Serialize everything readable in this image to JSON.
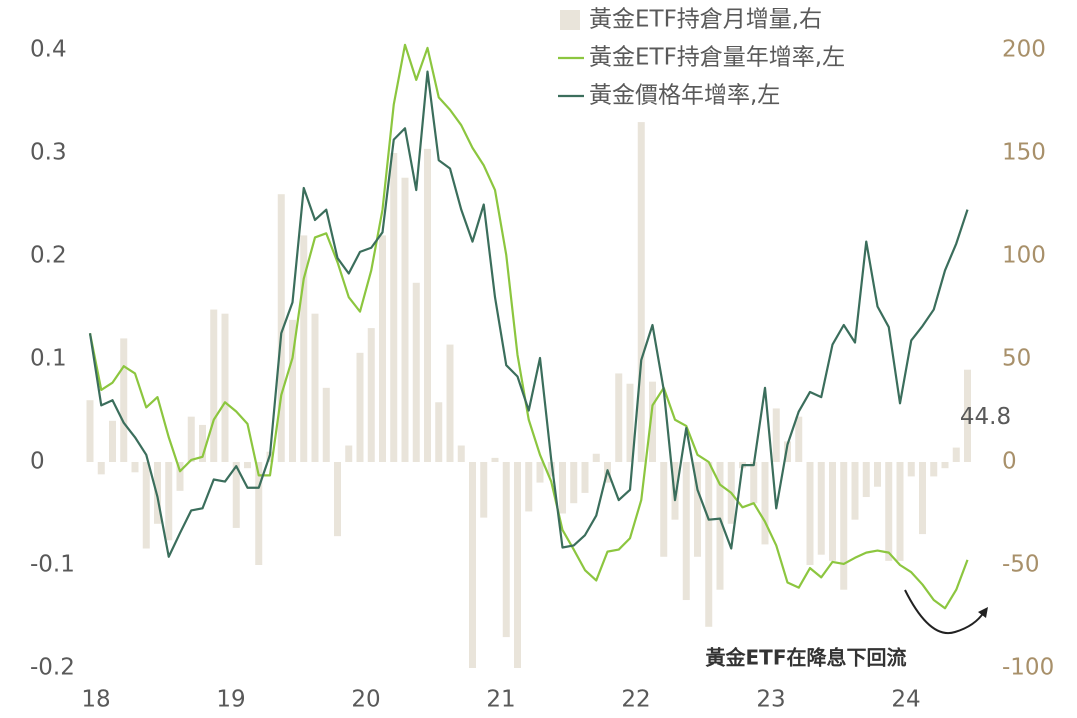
{
  "chart_data": {
    "type": "combo",
    "categories": [
      "18",
      null,
      null,
      null,
      null,
      null,
      null,
      null,
      null,
      null,
      null,
      null,
      "19",
      null,
      null,
      null,
      null,
      null,
      null,
      null,
      null,
      null,
      null,
      null,
      "20",
      null,
      null,
      null,
      null,
      null,
      null,
      null,
      null,
      null,
      null,
      null,
      "21",
      null,
      null,
      null,
      null,
      null,
      null,
      null,
      null,
      null,
      null,
      null,
      "22",
      null,
      null,
      null,
      null,
      null,
      null,
      null,
      null,
      null,
      null,
      null,
      "23",
      null,
      null,
      null,
      null,
      null,
      null,
      null,
      null,
      null,
      null,
      null,
      "24",
      null,
      null,
      null,
      null,
      null,
      null
    ],
    "series": [
      {
        "name": "黃金ETF持倉月增量,右",
        "type": "bar",
        "axis": "y2",
        "color": "#e9e4da",
        "values": [
          30,
          -6,
          20,
          60,
          -5,
          -42,
          -30,
          -38,
          -14,
          22,
          18,
          74,
          72,
          -32,
          -3,
          -50,
          5,
          130,
          69,
          110,
          72,
          36,
          -36,
          8,
          53,
          65,
          110,
          150,
          138,
          87,
          152,
          29,
          57,
          8,
          -100,
          -27,
          2,
          -85,
          -100,
          -24,
          -10,
          -7,
          -25,
          -20,
          -15,
          4,
          -10,
          43,
          38,
          165,
          39,
          -46,
          -28,
          -67,
          -46,
          -80,
          -62,
          -30,
          -3,
          -20,
          -40,
          26,
          10,
          22,
          -50,
          -45,
          -48,
          -62,
          -28,
          -17,
          -12,
          -48,
          -48,
          -7,
          -35,
          -7,
          -3,
          7,
          44.8
        ]
      },
      {
        "name": "黃金ETF持倉量年增率,左",
        "type": "line",
        "color": "#8cc63f",
        "values": [
          0.125,
          0.07,
          0.077,
          0.093,
          0.086,
          0.053,
          0.063,
          0.024,
          -0.009,
          0.002,
          0.005,
          0.041,
          0.058,
          0.049,
          0.037,
          -0.013,
          -0.013,
          0.065,
          0.101,
          0.178,
          0.218,
          0.222,
          0.194,
          0.16,
          0.146,
          0.186,
          0.245,
          0.347,
          0.405,
          0.371,
          0.402,
          0.354,
          0.342,
          0.327,
          0.305,
          0.288,
          0.264,
          0.201,
          0.104,
          0.041,
          0.007,
          -0.019,
          -0.066,
          -0.085,
          -0.105,
          -0.115,
          -0.087,
          -0.085,
          -0.074,
          -0.037,
          0.055,
          0.072,
          0.041,
          0.035,
          0.007,
          0,
          -0.022,
          -0.03,
          -0.044,
          -0.04,
          -0.058,
          -0.081,
          -0.117,
          -0.122,
          -0.103,
          -0.112,
          -0.097,
          -0.099,
          -0.093,
          -0.088,
          -0.086,
          -0.088,
          -0.1,
          -0.107,
          -0.119,
          -0.134,
          -0.142,
          -0.124,
          -0.095
        ]
      },
      {
        "name": "黃金價格年增率,左",
        "type": "line",
        "color": "#3b6e5c",
        "values": [
          0.125,
          0.055,
          0.06,
          0.038,
          0.024,
          0.007,
          -0.034,
          -0.092,
          -0.069,
          -0.047,
          -0.045,
          -0.017,
          -0.019,
          -0.004,
          -0.025,
          -0.025,
          0.007,
          0.125,
          0.155,
          0.266,
          0.235,
          0.245,
          0.198,
          0.183,
          0.204,
          0.208,
          0.223,
          0.313,
          0.324,
          0.264,
          0.379,
          0.293,
          0.285,
          0.245,
          0.214,
          0.25,
          0.16,
          0.094,
          0.083,
          0.05,
          0.101,
          0.002,
          -0.083,
          -0.081,
          -0.071,
          -0.052,
          -0.008,
          -0.037,
          -0.027,
          0.099,
          0.133,
          0.07,
          -0.037,
          0.033,
          -0.027,
          -0.056,
          -0.055,
          -0.084,
          -0.003,
          -0.003,
          0.072,
          -0.045,
          0.017,
          0.049,
          0.068,
          0.063,
          0.114,
          0.133,
          0.116,
          0.214,
          0.151,
          0.131,
          0.057,
          0.118,
          0.132,
          0.148,
          0.186,
          0.212,
          0.245
        ]
      }
    ],
    "ylim": [
      -0.2,
      0.4
    ],
    "yticks": [
      -0.2,
      -0.1,
      0,
      0.1,
      0.2,
      0.3,
      0.4
    ],
    "y2lim": [
      -100,
      200
    ],
    "y2ticks": [
      -100,
      -50,
      0,
      50,
      100,
      150,
      200
    ],
    "annotation": "黃金ETF在降息下回流",
    "grid": false
  }
}
